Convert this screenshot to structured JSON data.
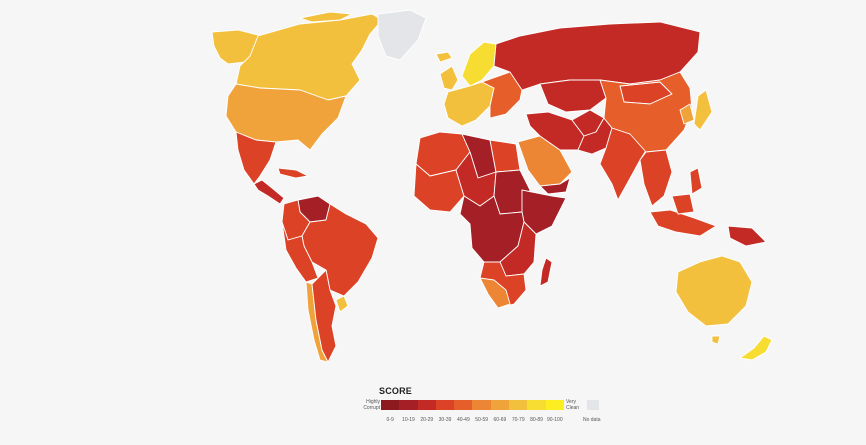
{
  "legend": {
    "title": "SCORE",
    "left_label": "Highly Corrupt",
    "right_label": "Very Clean",
    "nodata_label": "No data",
    "bins": [
      {
        "label": "0-9",
        "color": "#8c1a1f"
      },
      {
        "label": "10-19",
        "color": "#a51f26"
      },
      {
        "label": "20-29",
        "color": "#c42a25"
      },
      {
        "label": "30-39",
        "color": "#dc4226"
      },
      {
        "label": "40-49",
        "color": "#e65f2a"
      },
      {
        "label": "50-59",
        "color": "#ec8534"
      },
      {
        "label": "60-69",
        "color": "#f0a33b"
      },
      {
        "label": "70-79",
        "color": "#f3c03d"
      },
      {
        "label": "80-89",
        "color": "#f7dc32"
      },
      {
        "label": "90-100",
        "color": "#fcee21"
      }
    ],
    "nodata_color": "#e4e5e8"
  },
  "colors": {
    "background": "#f6f6f7",
    "border": "#ffffff"
  },
  "regions": [
    {
      "name": "alaska",
      "score_band": "70-79"
    },
    {
      "name": "canada",
      "score_band": "70-79"
    },
    {
      "name": "greenland",
      "score_band": "no data"
    },
    {
      "name": "united-states",
      "score_band": "60-69"
    },
    {
      "name": "mexico",
      "score_band": "30-39"
    },
    {
      "name": "central-america",
      "score_band": "20-29"
    },
    {
      "name": "caribbean",
      "score_band": "30-39"
    },
    {
      "name": "venezuela",
      "score_band": "10-19"
    },
    {
      "name": "colombia",
      "score_band": "30-39"
    },
    {
      "name": "brazil",
      "score_band": "30-39"
    },
    {
      "name": "peru-bolivia",
      "score_band": "30-39"
    },
    {
      "name": "chile",
      "score_band": "60-69"
    },
    {
      "name": "argentina",
      "score_band": "30-39"
    },
    {
      "name": "uruguay",
      "score_band": "70-79"
    },
    {
      "name": "iceland",
      "score_band": "70-79"
    },
    {
      "name": "uk-ireland",
      "score_band": "70-79"
    },
    {
      "name": "scandinavia",
      "score_band": "80-89"
    },
    {
      "name": "western-europe",
      "score_band": "70-79"
    },
    {
      "name": "eastern-europe",
      "score_band": "40-49"
    },
    {
      "name": "russia",
      "score_band": "20-29"
    },
    {
      "name": "north-africa",
      "score_band": "30-39"
    },
    {
      "name": "libya",
      "score_band": "10-19"
    },
    {
      "name": "egypt",
      "score_band": "30-39"
    },
    {
      "name": "west-africa",
      "score_band": "30-39"
    },
    {
      "name": "sahel",
      "score_band": "20-29"
    },
    {
      "name": "sudan",
      "score_band": "10-19"
    },
    {
      "name": "horn-of-africa",
      "score_band": "10-19"
    },
    {
      "name": "central-africa",
      "score_band": "10-19"
    },
    {
      "name": "east-africa",
      "score_band": "20-29"
    },
    {
      "name": "southern-africa",
      "score_band": "30-39"
    },
    {
      "name": "botswana-namibia",
      "score_band": "50-59"
    },
    {
      "name": "madagascar",
      "score_band": "20-29"
    },
    {
      "name": "arabian-peninsula",
      "score_band": "50-59"
    },
    {
      "name": "yemen",
      "score_band": "10-19"
    },
    {
      "name": "iran-iraq",
      "score_band": "20-29"
    },
    {
      "name": "central-asia",
      "score_band": "20-29"
    },
    {
      "name": "afghanistan",
      "score_band": "20-29"
    },
    {
      "name": "pakistan",
      "score_band": "20-29"
    },
    {
      "name": "india",
      "score_band": "30-39"
    },
    {
      "name": "china",
      "score_band": "40-49"
    },
    {
      "name": "mongolia",
      "score_band": "30-39"
    },
    {
      "name": "korea",
      "score_band": "60-69"
    },
    {
      "name": "japan",
      "score_band": "70-79"
    },
    {
      "name": "southeast-asia",
      "score_band": "30-39"
    },
    {
      "name": "indonesia",
      "score_band": "30-39"
    },
    {
      "name": "papua-new-guinea",
      "score_band": "20-29"
    },
    {
      "name": "philippines",
      "score_band": "30-39"
    },
    {
      "name": "australia",
      "score_band": "70-79"
    },
    {
      "name": "new-zealand",
      "score_band": "80-89"
    }
  ]
}
